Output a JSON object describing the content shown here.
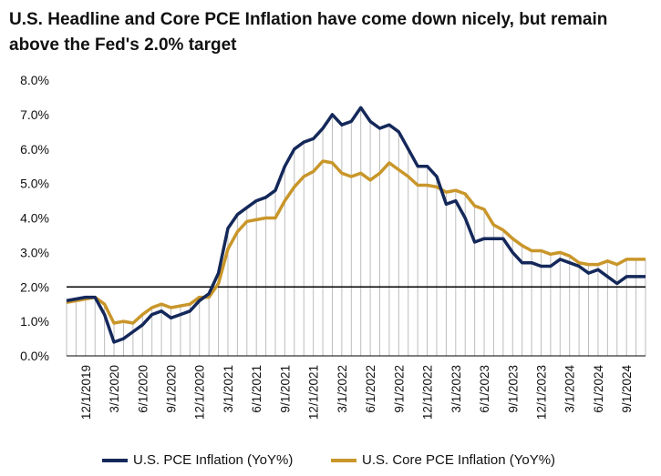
{
  "title": "U.S. Headline and Core PCE Inflation have come down nicely, but remain above the Fed's 2.0% target",
  "colors": {
    "headline": "#14285a",
    "core": "#c9962a",
    "reference": "#000000",
    "dropline": "#bdbdbd"
  },
  "chart_data": {
    "type": "line",
    "title": "U.S. Headline and Core PCE Inflation have come down nicely, but remain above the Fed's 2.0% target",
    "xlabel": "",
    "ylabel": "",
    "ylim": [
      0,
      8
    ],
    "y_ticks": [
      "0.0%",
      "1.0%",
      "2.0%",
      "3.0%",
      "4.0%",
      "5.0%",
      "6.0%",
      "7.0%",
      "8.0%"
    ],
    "x_tick_labels": [
      "12/1/2019",
      "3/1/2020",
      "6/1/2020",
      "9/1/2020",
      "12/1/2020",
      "3/1/2021",
      "6/1/2021",
      "9/1/2021",
      "12/1/2021",
      "3/1/2022",
      "6/1/2022",
      "9/1/2022",
      "12/1/2022",
      "3/1/2023",
      "6/1/2023",
      "9/1/2023",
      "12/1/2023",
      "3/1/2024",
      "6/1/2024",
      "9/1/2024"
    ],
    "x": [
      "2019-10",
      "2019-11",
      "2019-12",
      "2020-01",
      "2020-02",
      "2020-03",
      "2020-04",
      "2020-05",
      "2020-06",
      "2020-07",
      "2020-08",
      "2020-09",
      "2020-10",
      "2020-11",
      "2020-12",
      "2021-01",
      "2021-02",
      "2021-03",
      "2021-04",
      "2021-05",
      "2021-06",
      "2021-07",
      "2021-08",
      "2021-09",
      "2021-10",
      "2021-11",
      "2021-12",
      "2022-01",
      "2022-02",
      "2022-03",
      "2022-04",
      "2022-05",
      "2022-06",
      "2022-07",
      "2022-08",
      "2022-09",
      "2022-10",
      "2022-11",
      "2022-12",
      "2023-01",
      "2023-02",
      "2023-03",
      "2023-04",
      "2023-05",
      "2023-06",
      "2023-07",
      "2023-08",
      "2023-09",
      "2023-10",
      "2023-11",
      "2023-12",
      "2024-01",
      "2024-02",
      "2024-03",
      "2024-04",
      "2024-05",
      "2024-06",
      "2024-07",
      "2024-08",
      "2024-09",
      "2024-10",
      "2024-11"
    ],
    "series": [
      {
        "name": "U.S. PCE Inflation (YoY%)",
        "values": [
          1.6,
          1.65,
          1.7,
          1.7,
          1.2,
          0.4,
          0.5,
          0.7,
          0.9,
          1.2,
          1.3,
          1.1,
          1.2,
          1.3,
          1.6,
          1.8,
          2.4,
          3.7,
          4.1,
          4.3,
          4.5,
          4.6,
          4.8,
          5.5,
          6.0,
          6.2,
          6.3,
          6.6,
          7.0,
          6.7,
          6.8,
          7.2,
          6.8,
          6.6,
          6.7,
          6.5,
          6.0,
          5.5,
          5.5,
          5.2,
          4.4,
          4.5,
          4.0,
          3.3,
          3.4,
          3.4,
          3.4,
          3.0,
          2.7,
          2.7,
          2.6,
          2.6,
          2.8,
          2.7,
          2.6,
          2.4,
          2.5,
          2.3,
          2.1,
          2.3,
          2.3,
          2.3
        ]
      },
      {
        "name": "U.S. Core PCE Inflation (YoY%)",
        "values": [
          1.55,
          1.6,
          1.65,
          1.7,
          1.5,
          0.95,
          1.0,
          0.95,
          1.2,
          1.4,
          1.5,
          1.4,
          1.45,
          1.5,
          1.7,
          1.7,
          2.1,
          3.1,
          3.6,
          3.9,
          3.95,
          4.0,
          4.0,
          4.5,
          4.9,
          5.2,
          5.35,
          5.65,
          5.6,
          5.3,
          5.2,
          5.3,
          5.1,
          5.3,
          5.6,
          5.4,
          5.2,
          4.95,
          4.95,
          4.9,
          4.75,
          4.8,
          4.7,
          4.35,
          4.25,
          3.8,
          3.65,
          3.4,
          3.2,
          3.05,
          3.05,
          2.95,
          3.0,
          2.9,
          2.7,
          2.65,
          2.65,
          2.75,
          2.65,
          2.8,
          2.8,
          2.8
        ]
      }
    ],
    "reference_line": {
      "value": 2.0
    },
    "grid": false,
    "legend": "bottom"
  }
}
